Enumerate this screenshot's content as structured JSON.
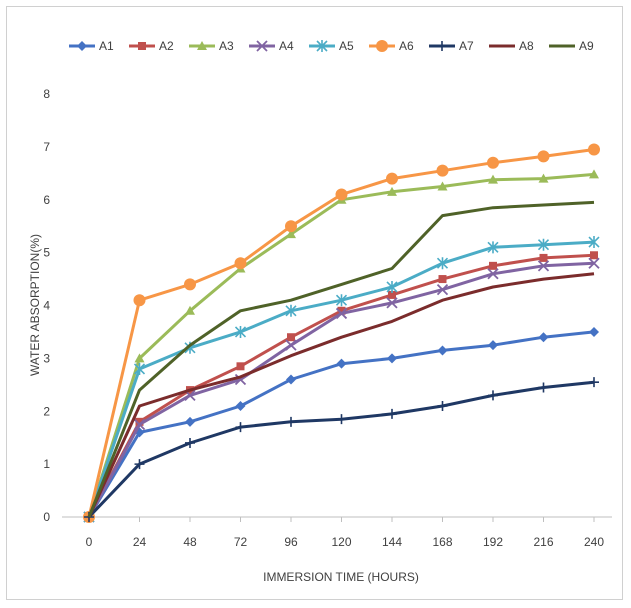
{
  "chart_data": {
    "type": "line",
    "title": "",
    "xlabel": "IMMERSION TIME (HOURS)",
    "ylabel": "WATER ABSORPTION(%)",
    "x": [
      0,
      24,
      48,
      72,
      96,
      120,
      144,
      168,
      192,
      216,
      240
    ],
    "xlim": [
      0,
      240
    ],
    "ylim": [
      0,
      8
    ],
    "yticks": [
      0,
      1,
      2,
      3,
      4,
      5,
      6,
      7,
      8
    ],
    "grid": false,
    "legend_position": "top",
    "series": [
      {
        "name": "A1",
        "color": "#4472C4",
        "marker": "diamond",
        "values": [
          0,
          1.6,
          1.8,
          2.1,
          2.6,
          2.9,
          3.0,
          3.15,
          3.25,
          3.4,
          3.5
        ]
      },
      {
        "name": "A2",
        "color": "#C0504D",
        "marker": "square",
        "values": [
          0,
          1.8,
          2.4,
          2.85,
          3.4,
          3.9,
          4.2,
          4.5,
          4.75,
          4.9,
          4.95
        ]
      },
      {
        "name": "A3",
        "color": "#9BBB59",
        "marker": "triangle",
        "values": [
          0,
          3.0,
          3.9,
          4.7,
          5.35,
          6.0,
          6.15,
          6.25,
          6.38,
          6.4,
          6.48
        ]
      },
      {
        "name": "A4",
        "color": "#8064A2",
        "marker": "x",
        "values": [
          0,
          1.75,
          2.3,
          2.6,
          3.25,
          3.85,
          4.05,
          4.3,
          4.6,
          4.75,
          4.8
        ]
      },
      {
        "name": "A5",
        "color": "#4BACC6",
        "marker": "star",
        "values": [
          0,
          2.8,
          3.2,
          3.5,
          3.9,
          4.1,
          4.35,
          4.8,
          5.1,
          5.15,
          5.2
        ]
      },
      {
        "name": "A6",
        "color": "#F79646",
        "marker": "circle",
        "values": [
          0,
          4.1,
          4.4,
          4.8,
          5.5,
          6.1,
          6.4,
          6.55,
          6.7,
          6.82,
          6.95
        ]
      },
      {
        "name": "A7",
        "color": "#1F3864",
        "marker": "plus",
        "values": [
          0,
          1.0,
          1.4,
          1.7,
          1.8,
          1.85,
          1.95,
          2.1,
          2.3,
          2.45,
          2.55
        ]
      },
      {
        "name": "A8",
        "color": "#7B2C2C",
        "marker": "none",
        "values": [
          0,
          2.1,
          2.4,
          2.65,
          3.05,
          3.4,
          3.7,
          4.1,
          4.35,
          4.5,
          4.6
        ]
      },
      {
        "name": "A9",
        "color": "#4F6228",
        "marker": "none",
        "values": [
          0,
          2.4,
          3.25,
          3.9,
          4.1,
          4.4,
          4.7,
          5.7,
          5.85,
          5.9,
          5.95
        ]
      }
    ]
  }
}
